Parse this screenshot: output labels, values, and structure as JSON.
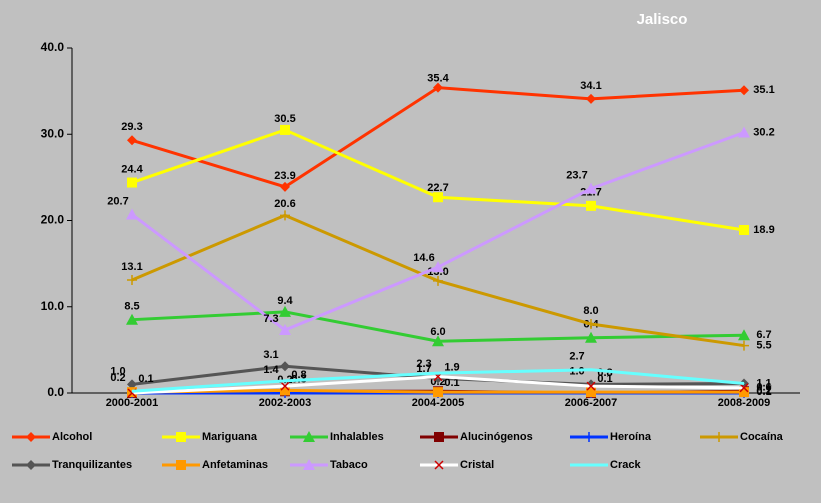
{
  "chart_data": {
    "type": "line",
    "title": "Jalisco",
    "categories": [
      "2000-2001",
      "2002-2003",
      "2004-2005",
      "2006-2007",
      "2008-2009"
    ],
    "ylim": [
      0,
      40
    ],
    "yticks": [
      {
        "value": 0,
        "label": "0.0"
      },
      {
        "value": 10,
        "label": "10.0"
      },
      {
        "value": 20,
        "label": "20.0"
      },
      {
        "value": 30,
        "label": "30.0"
      },
      {
        "value": 40,
        "label": "40.0"
      }
    ],
    "series": [
      {
        "name": "Alcohol",
        "color": "#ff3300",
        "marker": "diamond",
        "values": [
          29.3,
          23.9,
          35.4,
          34.1,
          35.1
        ],
        "value_labels": [
          "29.3",
          "23.9",
          "35.4",
          "34.1",
          "35.1"
        ]
      },
      {
        "name": "Mariguana",
        "color": "#ffff00",
        "marker": "square",
        "values": [
          24.4,
          30.5,
          22.7,
          21.7,
          18.9
        ],
        "value_labels": [
          "24.4",
          "30.5",
          "22.7",
          "21.7",
          "18.9"
        ]
      },
      {
        "name": "Inhalables",
        "color": "#33cc33",
        "marker": "triangle",
        "values": [
          8.5,
          9.4,
          6.0,
          6.4,
          6.7
        ],
        "value_labels": [
          "8.5",
          "9.4",
          "6.0",
          "6.4",
          "6.7"
        ]
      },
      {
        "name": "Alucinógenos",
        "color": "#800000",
        "marker": "square",
        "values": [
          0.0,
          0.2,
          0.2,
          0.0,
          0.2
        ],
        "value_labels": [
          null,
          "0.2",
          "0.2",
          null,
          "0.2"
        ]
      },
      {
        "name": "Heroína",
        "color": "#0033ff",
        "marker": "plus",
        "values": [
          0.0,
          0.0,
          0.0,
          0.0,
          0.0
        ],
        "value_labels": [
          null,
          null,
          null,
          null,
          null
        ]
      },
      {
        "name": "Cocaína",
        "color": "#cc9900",
        "marker": "plus",
        "values": [
          13.1,
          20.6,
          13.0,
          8.0,
          5.5
        ],
        "value_labels": [
          "13.1",
          "20.6",
          "13.0",
          "8.0",
          "5.5"
        ]
      },
      {
        "name": "Tranquilizantes",
        "color": "#555555",
        "marker": "diamond",
        "values": [
          1.0,
          3.1,
          1.7,
          1.0,
          1.1
        ],
        "value_labels": [
          "1.0",
          "3.1",
          "1.7",
          "1.0",
          "1.1"
        ]
      },
      {
        "name": "Anfetaminas",
        "color": "#ff9900",
        "marker": "square",
        "values": [
          0.1,
          0.3,
          0.1,
          0.1,
          0.1
        ],
        "value_labels": [
          "0.1",
          "0.3",
          "0.1",
          "0.1",
          "0.1"
        ]
      },
      {
        "name": "Tabaco",
        "color": "#cc99ff",
        "marker": "triangle",
        "values": [
          20.7,
          7.3,
          14.6,
          23.7,
          30.2
        ],
        "value_labels": [
          "20.7",
          "7.3",
          "14.6",
          "23.7",
          "30.2"
        ]
      },
      {
        "name": "Cristal",
        "color": "#ffffff",
        "marker": "cross",
        "values": [
          0.0,
          0.8,
          1.9,
          0.8,
          0.6
        ],
        "value_labels": [
          null,
          "0.8",
          "1.9",
          "0.8",
          "0.6"
        ]
      },
      {
        "name": "Crack",
        "color": "#66ffff",
        "marker": "none",
        "values": [
          0.2,
          1.4,
          2.3,
          2.7,
          1.1
        ],
        "value_labels": [
          "0.2",
          "1.4",
          "2.3",
          "2.7",
          null
        ]
      }
    ]
  }
}
